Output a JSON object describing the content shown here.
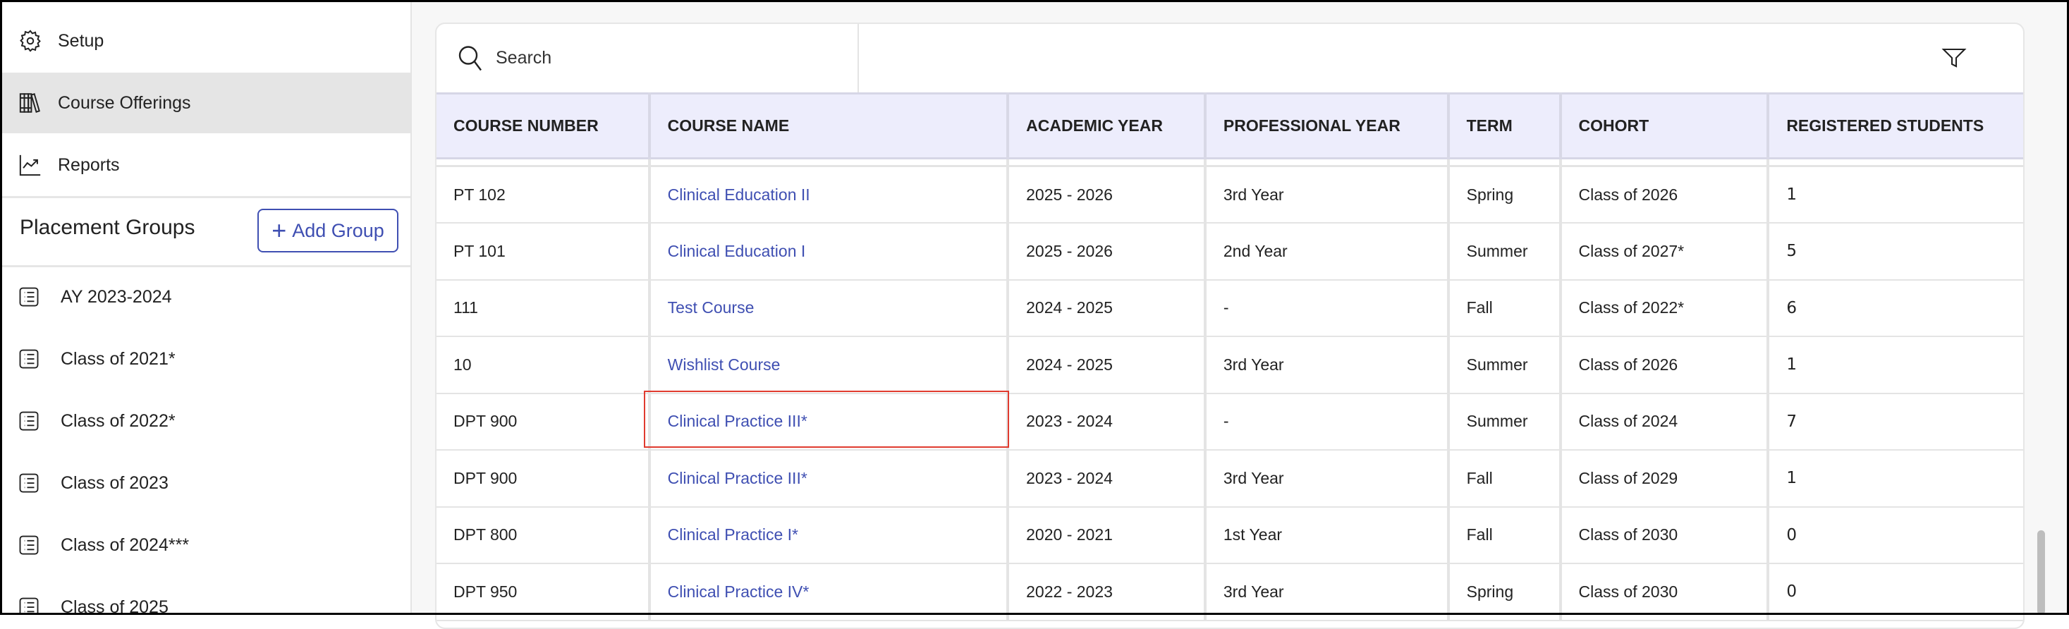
{
  "sidebar": {
    "nav": [
      {
        "label": "Setup",
        "icon": "gear-icon"
      },
      {
        "label": "Course Offerings",
        "icon": "books-icon",
        "active": true
      },
      {
        "label": "Reports",
        "icon": "chart-line-icon"
      }
    ],
    "placement_groups_title": "Placement Groups",
    "add_group_label": "Add Group",
    "groups": [
      "AY 2023-2024",
      "Class of 2021*",
      "Class of 2022*",
      "Class of 2023",
      "Class of 2024***",
      "Class of 2025"
    ]
  },
  "toolbar": {
    "search_placeholder": "Search"
  },
  "table": {
    "headers": [
      "COURSE NUMBER",
      "COURSE NAME",
      "ACADEMIC YEAR",
      "PROFESSIONAL YEAR",
      "TERM",
      "COHORT",
      "REGISTERED STUDENTS"
    ],
    "rows": [
      [
        "PT 102",
        "Clinical Education II",
        "2025 - 2026",
        "3rd Year",
        "Spring",
        "Class of 2026",
        "1"
      ],
      [
        "PT 101",
        "Clinical Education I",
        "2025 - 2026",
        "2nd Year",
        "Summer",
        "Class of 2027*",
        "5"
      ],
      [
        "111",
        "Test Course",
        "2024 - 2025",
        "-",
        "Fall",
        "Class of 2022*",
        "6"
      ],
      [
        "10",
        "Wishlist Course",
        "2024 - 2025",
        "3rd Year",
        "Summer",
        "Class of 2026",
        "1"
      ],
      [
        "DPT 900",
        "Clinical Practice III*",
        "2023 - 2024",
        "-",
        "Summer",
        "Class of 2024",
        "7"
      ],
      [
        "DPT 900",
        "Clinical Practice III*",
        "2023 - 2024",
        "3rd Year",
        "Fall",
        "Class of 2029",
        "1"
      ],
      [
        "DPT 800",
        "Clinical Practice I*",
        "2020 - 2021",
        "1st Year",
        "Fall",
        "Class of 2030",
        "0"
      ],
      [
        "DPT 950",
        "Clinical Practice IV*",
        "2022 - 2023",
        "3rd Year",
        "Spring",
        "Class of 2030",
        "0"
      ]
    ]
  },
  "colors": {
    "accent": "#3f4fb2",
    "header_bg": "#ededfc",
    "highlight": "#e03b2f",
    "active_nav": "#e5e5e5"
  }
}
